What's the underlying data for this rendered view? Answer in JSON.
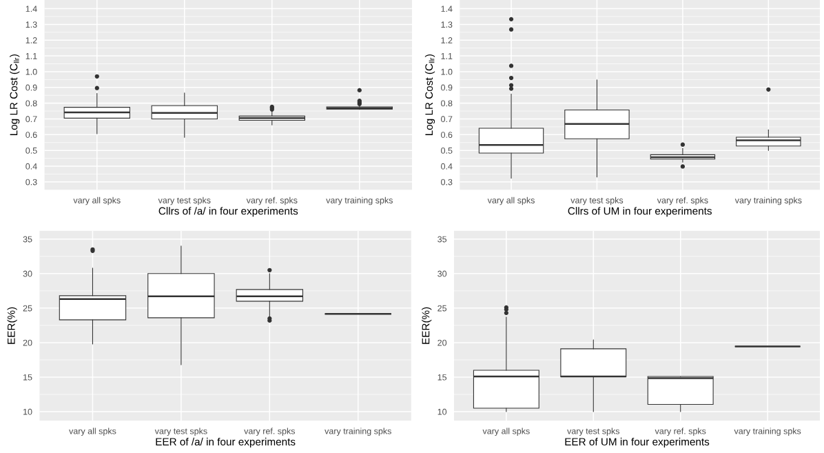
{
  "chart_data": [
    {
      "type": "box",
      "xlabel": "Cllrs of /a/ in four experiments",
      "ylabel": "Log LR Cost (C$_{llr}$)",
      "categories": [
        "vary all spks",
        "vary test spks",
        "vary ref. spks",
        "vary training spks"
      ],
      "ylim": [
        0.25,
        1.455
      ],
      "yticks": [
        0.3,
        0.4,
        0.5,
        0.6,
        0.7,
        0.8,
        0.9,
        {
          "value": 1.0,
          "label": "1.0"
        },
        1.1,
        1.2,
        1.3,
        1.4
      ],
      "grid": true,
      "boxes": [
        {
          "low": 0.606,
          "q1": 0.705,
          "median": 0.742,
          "q3": 0.774,
          "high": 0.862,
          "outliers": [
            0.896,
            0.97
          ]
        },
        {
          "low": 0.583,
          "q1": 0.7,
          "median": 0.738,
          "q3": 0.784,
          "high": 0.865
        },
        {
          "low": 0.662,
          "q1": 0.691,
          "median": 0.705,
          "q3": 0.718,
          "high": 0.747,
          "outliers": [
            0.76,
            0.77,
            0.777
          ]
        },
        {
          "low": 0.76,
          "q1": 0.762,
          "median": 0.767,
          "q3": 0.776,
          "high": 0.789,
          "outliers": [
            0.795,
            0.805,
            0.815,
            0.882
          ]
        }
      ]
    },
    {
      "type": "box",
      "xlabel": "Cllrs of UM in four experiments",
      "ylabel": "Log LR Cost (C$_{llr}$)",
      "categories": [
        "vary all spks",
        "vary test spks",
        "vary ref. spks",
        "vary training spks"
      ],
      "ylim": [
        0.25,
        1.455
      ],
      "yticks": [
        0.3,
        0.4,
        0.5,
        0.6,
        0.7,
        0.8,
        0.9,
        {
          "value": 1.0,
          "label": "1.0"
        },
        1.1,
        1.2,
        1.3,
        1.4
      ],
      "grid": true,
      "boxes": [
        {
          "low": 0.324,
          "q1": 0.483,
          "median": 0.535,
          "q3": 0.641,
          "high": 0.858,
          "outliers": [
            0.892,
            0.914,
            0.96,
            1.037,
            1.268,
            1.333
          ]
        },
        {
          "low": 0.331,
          "q1": 0.574,
          "median": 0.668,
          "q3": 0.757,
          "high": 0.948
        },
        {
          "low": 0.425,
          "q1": 0.445,
          "median": 0.457,
          "q3": 0.473,
          "high": 0.513,
          "outliers": [
            0.398,
            0.537
          ]
        },
        {
          "low": 0.5,
          "q1": 0.528,
          "median": 0.564,
          "q3": 0.584,
          "high": 0.631,
          "outliers": [
            0.887
          ]
        }
      ]
    },
    {
      "type": "box",
      "xlabel": "EER of /a/ in four experiments",
      "ylabel": "EER(%)",
      "categories": [
        "vary all spks",
        "vary test spks",
        "vary ref. spks",
        "vary training spks"
      ],
      "ylim": [
        8.7,
        36.2
      ],
      "yticks": [
        10,
        15,
        20,
        25,
        30,
        35
      ],
      "grid": true,
      "boxes": [
        {
          "low": 19.8,
          "q1": 23.3,
          "median": 26.3,
          "q3": 26.8,
          "high": 30.8,
          "outliers": [
            33.3,
            33.5
          ]
        },
        {
          "low": 16.8,
          "q1": 23.6,
          "median": 26.7,
          "q3": 30.0,
          "high": 34.0
        },
        {
          "low": 23.8,
          "q1": 26.0,
          "median": 26.7,
          "q3": 27.7,
          "high": 30.0,
          "outliers": [
            23.2,
            23.5,
            30.5
          ]
        },
        {
          "low": 24.15,
          "q1": 24.15,
          "median": 24.15,
          "q3": 24.15,
          "high": 24.15
        }
      ]
    },
    {
      "type": "box",
      "xlabel": "EER of UM in four experiments",
      "ylabel": "EER(%)",
      "categories": [
        "vary all spks",
        "vary test spks",
        "vary ref. spks",
        "vary training spks"
      ],
      "ylim": [
        8.7,
        36.2
      ],
      "yticks": [
        10,
        15,
        20,
        25,
        30,
        35
      ],
      "grid": true,
      "boxes": [
        {
          "low": 10.0,
          "q1": 10.5,
          "median": 15.1,
          "q3": 16.0,
          "high": 23.7,
          "outliers": [
            24.3,
            24.8,
            25.1
          ]
        },
        {
          "low": 10.0,
          "q1": 15.05,
          "median": 15.1,
          "q3": 19.1,
          "high": 20.4
        },
        {
          "low": 10.0,
          "q1": 11.05,
          "median": 14.85,
          "q3": 15.1,
          "high": 15.1
        },
        {
          "low": 19.45,
          "q1": 19.45,
          "median": 19.45,
          "q3": 19.45,
          "high": 19.45
        }
      ]
    }
  ]
}
